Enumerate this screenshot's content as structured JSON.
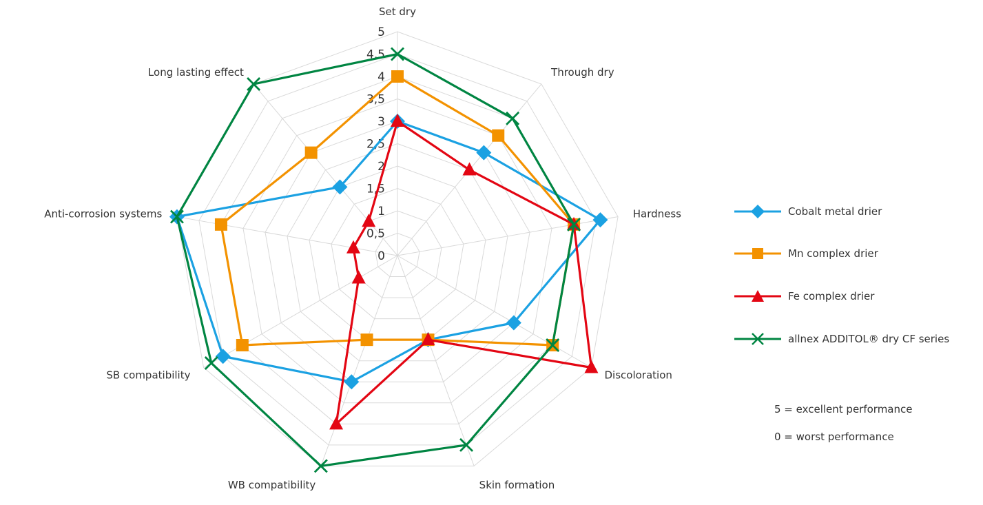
{
  "chart_data": {
    "type": "radar",
    "title": "",
    "axes": [
      "Set dry",
      "Through dry",
      "Hardness",
      "Discoloration",
      "Skin formation",
      "WB compatibility",
      "SB compatibility",
      "Anti-corrosion systems",
      "Long lasting effect"
    ],
    "ticks": [
      "0",
      "0,5",
      "1",
      "1,5",
      "2",
      "2,5",
      "3",
      "3,5",
      "4",
      "4,5",
      "5"
    ],
    "rlim": [
      0,
      5
    ],
    "grid": true,
    "legend_position": "right",
    "series": [
      {
        "name": "Cobalt metal drier",
        "marker": "diamond",
        "color": "#1ba1e2",
        "values": [
          3,
          3,
          4.6,
          3,
          2,
          3,
          4.5,
          5,
          2
        ]
      },
      {
        "name": "Mn complex drier",
        "marker": "square",
        "color": "#f39200",
        "values": [
          4,
          3.5,
          4,
          4,
          2,
          2,
          4,
          4,
          3
        ]
      },
      {
        "name": "Fe complex drier",
        "marker": "triangle",
        "color": "#e30613",
        "values": [
          3,
          2.5,
          4,
          5,
          2,
          4,
          1,
          1,
          1
        ]
      },
      {
        "name": "allnex ADDITOL® dry CF series",
        "marker": "x",
        "color": "#008542",
        "values": [
          4.5,
          4,
          4,
          4,
          4.5,
          5,
          4.8,
          5,
          5
        ]
      }
    ]
  },
  "notes": [
    "5 = excellent performance",
    "0 = worst performance"
  ]
}
